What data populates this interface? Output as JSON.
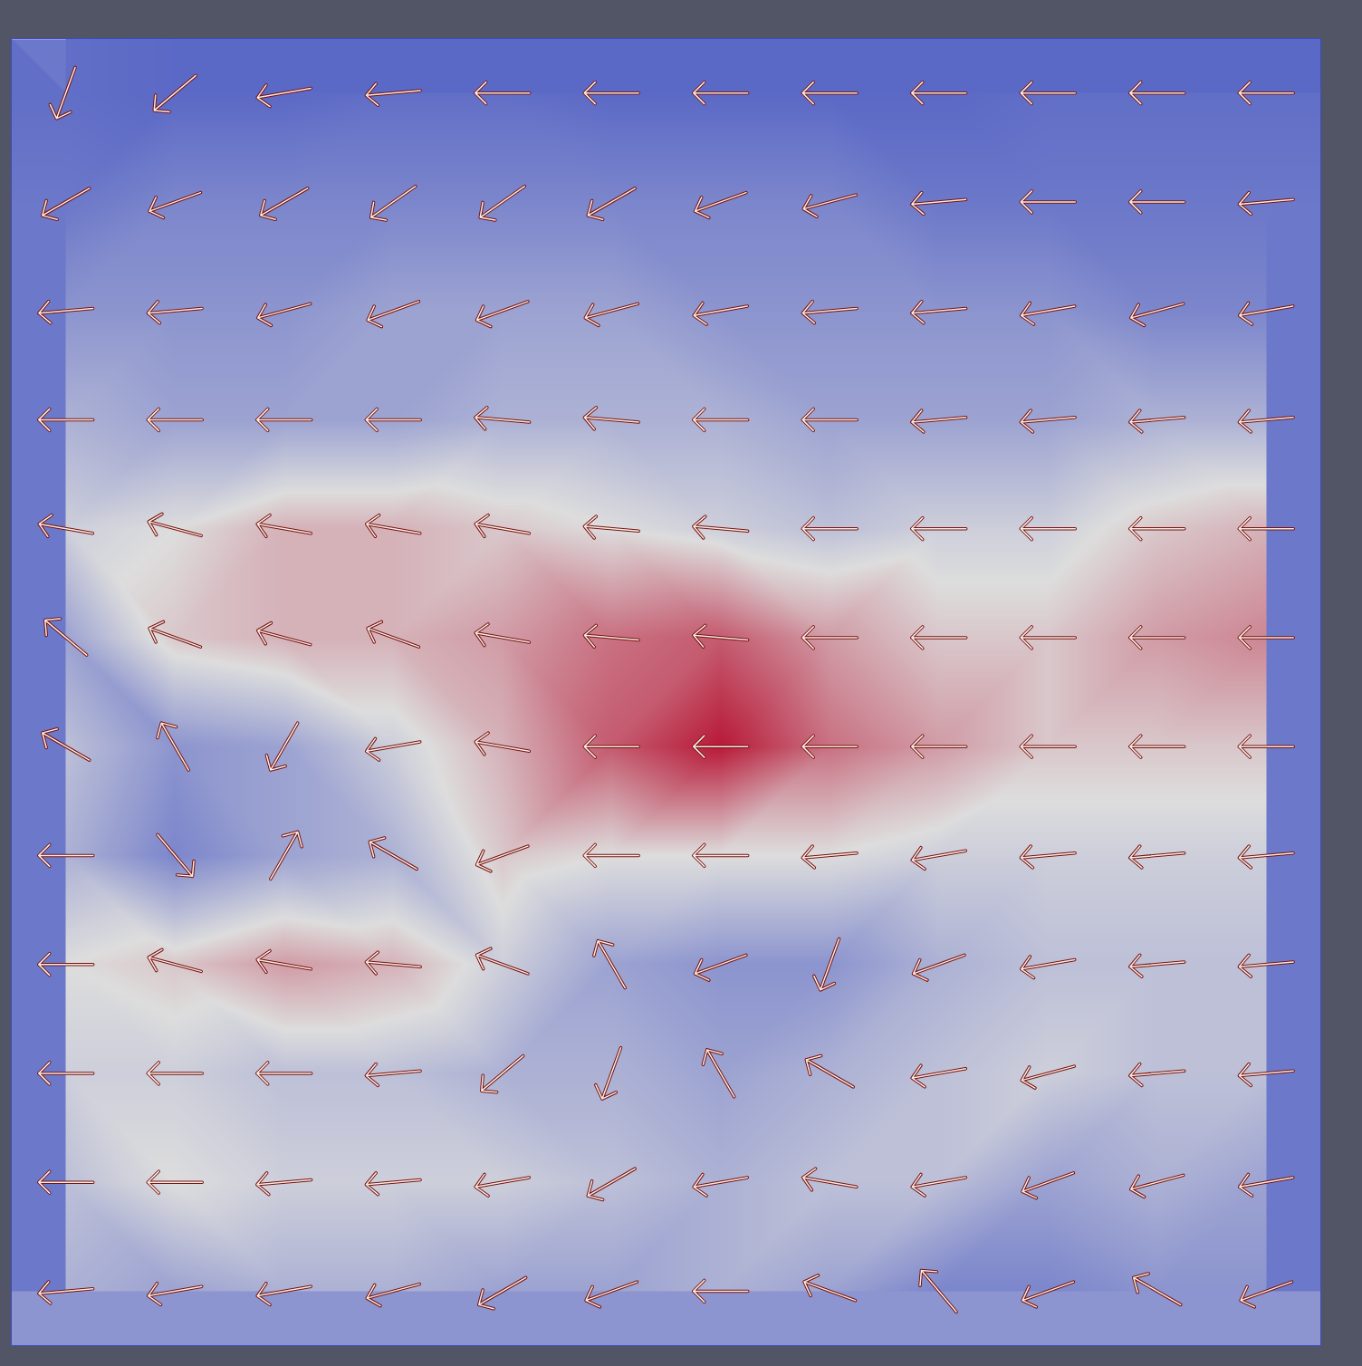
{
  "chart_data": {
    "type": "vector_field",
    "x": [
      0.5,
      1.5,
      2.5,
      3.5,
      4.5,
      5.5,
      6.5,
      7.5,
      8.5,
      9.5,
      10.5,
      11.5
    ],
    "y": [
      0.5,
      1.5,
      2.5,
      3.5,
      4.5,
      5.5,
      6.5,
      7.5,
      8.5,
      9.5,
      10.5,
      11.5
    ],
    "xlim": [
      0,
      12
    ],
    "ylim": [
      0,
      12
    ],
    "tick_labels": false,
    "value_range": [
      0,
      1
    ],
    "scalar": [
      [
        0.12,
        0.1,
        0.1,
        0.12,
        0.12,
        0.1,
        0.1,
        0.1,
        0.1,
        0.12,
        0.12,
        0.12
      ],
      [
        0.15,
        0.2,
        0.2,
        0.2,
        0.2,
        0.2,
        0.2,
        0.2,
        0.15,
        0.15,
        0.15,
        0.15
      ],
      [
        0.25,
        0.25,
        0.25,
        0.3,
        0.3,
        0.3,
        0.25,
        0.25,
        0.25,
        0.25,
        0.2,
        0.2
      ],
      [
        0.35,
        0.3,
        0.3,
        0.3,
        0.35,
        0.35,
        0.35,
        0.3,
        0.3,
        0.3,
        0.35,
        0.35
      ],
      [
        0.45,
        0.5,
        0.6,
        0.6,
        0.55,
        0.5,
        0.45,
        0.4,
        0.45,
        0.45,
        0.55,
        0.6
      ],
      [
        0.3,
        0.55,
        0.6,
        0.6,
        0.65,
        0.75,
        0.8,
        0.65,
        0.55,
        0.55,
        0.65,
        0.7
      ],
      [
        0.4,
        0.25,
        0.3,
        0.45,
        0.6,
        0.8,
        0.95,
        0.75,
        0.65,
        0.55,
        0.55,
        0.55
      ],
      [
        0.35,
        0.2,
        0.3,
        0.35,
        0.55,
        0.5,
        0.5,
        0.5,
        0.45,
        0.45,
        0.45,
        0.45
      ],
      [
        0.5,
        0.55,
        0.65,
        0.6,
        0.45,
        0.3,
        0.25,
        0.25,
        0.35,
        0.4,
        0.4,
        0.4
      ],
      [
        0.45,
        0.45,
        0.4,
        0.4,
        0.35,
        0.35,
        0.3,
        0.35,
        0.4,
        0.45,
        0.4,
        0.4
      ],
      [
        0.4,
        0.5,
        0.45,
        0.45,
        0.45,
        0.4,
        0.35,
        0.4,
        0.4,
        0.3,
        0.35,
        0.3
      ],
      [
        0.35,
        0.3,
        0.35,
        0.35,
        0.3,
        0.3,
        0.35,
        0.3,
        0.2,
        0.2,
        0.25,
        0.25
      ]
    ],
    "angles": [
      [
        200,
        230,
        260,
        265,
        270,
        270,
        270,
        270,
        270,
        270,
        270,
        270
      ],
      [
        240,
        250,
        240,
        235,
        235,
        240,
        250,
        255,
        265,
        270,
        270,
        265
      ],
      [
        265,
        265,
        255,
        250,
        250,
        255,
        260,
        265,
        265,
        260,
        255,
        260
      ],
      [
        270,
        270,
        270,
        270,
        275,
        275,
        270,
        270,
        265,
        265,
        265,
        265
      ],
      [
        280,
        285,
        280,
        280,
        280,
        275,
        275,
        270,
        270,
        270,
        270,
        270
      ],
      [
        310,
        290,
        285,
        290,
        280,
        275,
        275,
        270,
        270,
        270,
        270,
        270
      ],
      [
        300,
        330,
        210,
        260,
        280,
        270,
        270,
        270,
        270,
        270,
        270,
        270
      ],
      [
        270,
        140,
        30,
        300,
        250,
        270,
        270,
        265,
        260,
        265,
        265,
        265
      ],
      [
        270,
        285,
        280,
        275,
        290,
        330,
        250,
        200,
        250,
        260,
        265,
        265
      ],
      [
        270,
        270,
        270,
        265,
        230,
        200,
        330,
        300,
        260,
        255,
        265,
        265
      ],
      [
        270,
        270,
        265,
        265,
        260,
        240,
        260,
        280,
        260,
        250,
        255,
        260
      ],
      [
        265,
        260,
        260,
        255,
        240,
        250,
        270,
        290,
        320,
        250,
        300,
        250
      ]
    ]
  }
}
